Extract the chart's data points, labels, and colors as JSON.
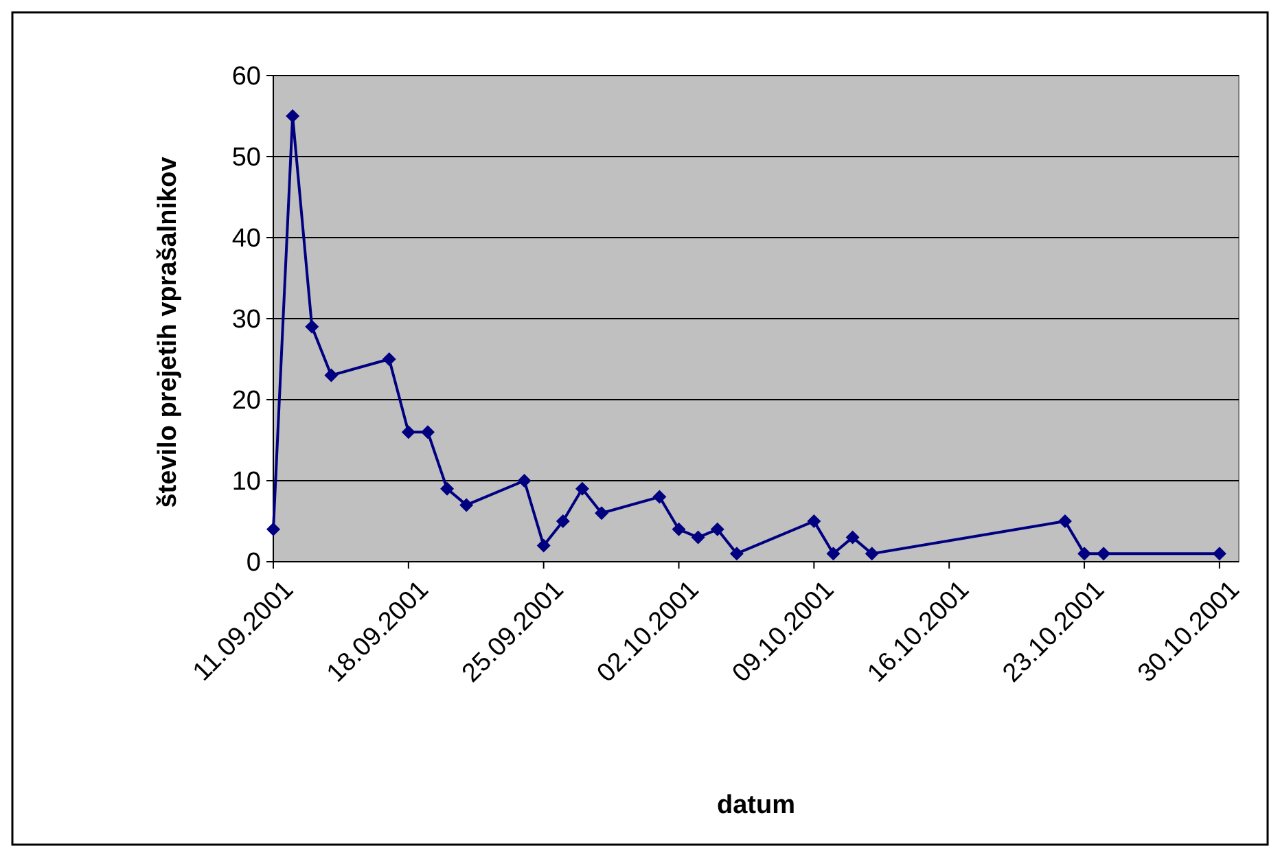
{
  "chart_data": {
    "type": "line",
    "xlabel": "datum",
    "ylabel": "število prejetih vprašalnikov",
    "x": [
      "2001-09-11",
      "2001-09-12",
      "2001-09-13",
      "2001-09-14",
      "2001-09-17",
      "2001-09-18",
      "2001-09-19",
      "2001-09-20",
      "2001-09-21",
      "2001-09-24",
      "2001-09-25",
      "2001-09-26",
      "2001-09-27",
      "2001-09-28",
      "2001-10-01",
      "2001-10-02",
      "2001-10-03",
      "2001-10-04",
      "2001-10-05",
      "2001-10-09",
      "2001-10-10",
      "2001-10-11",
      "2001-10-12",
      "2001-10-22",
      "2001-10-23",
      "2001-10-24",
      "2001-10-30"
    ],
    "series": [
      {
        "color": "#000080",
        "values": [
          4,
          55,
          29,
          23,
          25,
          16,
          16,
          9,
          7,
          10,
          2,
          5,
          9,
          6,
          8,
          4,
          3,
          4,
          1,
          5,
          1,
          3,
          1,
          5,
          1,
          1,
          1
        ]
      }
    ],
    "xlim": [
      "2001-09-11",
      "2001-10-31"
    ],
    "xticks": [
      {
        "value": "2001-09-11",
        "label": "11.09.2001"
      },
      {
        "value": "2001-09-18",
        "label": "18.09.2001"
      },
      {
        "value": "2001-09-25",
        "label": "25.09.2001"
      },
      {
        "value": "2001-10-02",
        "label": "02.10.2001"
      },
      {
        "value": "2001-10-09",
        "label": "09.10.2001"
      },
      {
        "value": "2001-10-16",
        "label": "16.10.2001"
      },
      {
        "value": "2001-10-23",
        "label": "23.10.2001"
      },
      {
        "value": "2001-10-30",
        "label": "30.10.2001"
      }
    ],
    "ylim": [
      0,
      60
    ],
    "yticks": [
      0,
      10,
      20,
      30,
      40,
      50,
      60
    ],
    "grid": "y",
    "marker": "diamond",
    "line_style": "solid"
  }
}
